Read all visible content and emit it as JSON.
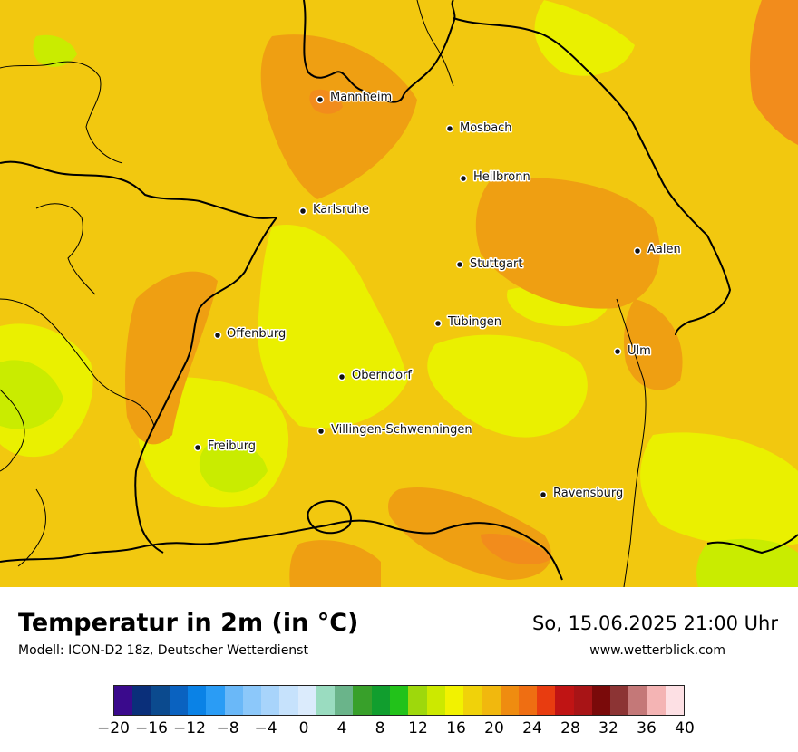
{
  "map": {
    "colors": {
      "base": "#f2c80f",
      "warm": "#ef9f12",
      "hot": "#f28c1c",
      "cool": "#eaf000",
      "cooler": "#c9ec00",
      "green": "#8cd214"
    },
    "cities": [
      {
        "name": "Mannheim",
        "id": "mannheim"
      },
      {
        "name": "Mosbach",
        "id": "mosbach"
      },
      {
        "name": "Heilbronn",
        "id": "heilbronn"
      },
      {
        "name": "Karlsruhe",
        "id": "karlsruhe"
      },
      {
        "name": "Aalen",
        "id": "aalen"
      },
      {
        "name": "Stuttgart",
        "id": "stuttgart"
      },
      {
        "name": "Tübingen",
        "id": "tuebingen"
      },
      {
        "name": "Offenburg",
        "id": "offenburg"
      },
      {
        "name": "Ulm",
        "id": "ulm"
      },
      {
        "name": "Oberndorf",
        "id": "oberndorf"
      },
      {
        "name": "Villingen-Schwenningen",
        "id": "villingen-schwenningen"
      },
      {
        "name": "Freiburg",
        "id": "freiburg"
      },
      {
        "name": "Ravensburg",
        "id": "ravensburg"
      }
    ]
  },
  "footer": {
    "title": "Temperatur in 2m (in °C)",
    "model": "Modell: ICON-D2 18z, Deutscher Wetterdienst",
    "datetime": "So, 15.06.2025 21:00 Uhr",
    "website": "www.wetterblick.com"
  },
  "legend": {
    "colors": [
      "#3a0a8c",
      "#0a2f7a",
      "#0b4a8e",
      "#0a62c0",
      "#0a82e6",
      "#2a9cf5",
      "#6ab8f8",
      "#8cc8fa",
      "#a8d4fb",
      "#c6e2fc",
      "#dbebfc",
      "#9adcc0",
      "#6ab48a",
      "#38a02a",
      "#119e2e",
      "#22c21a",
      "#9ed80c",
      "#cce900",
      "#f2f200",
      "#f0d20a",
      "#f1b80e",
      "#ef8c10",
      "#ef6e12",
      "#e83c10",
      "#c01414",
      "#a81416",
      "#7a0a0a",
      "#8c3434",
      "#c47878",
      "#f4b4b4",
      "#fde0e4"
    ],
    "labels": [
      "−20",
      "−16",
      "−12",
      "−8",
      "−4",
      "0",
      "4",
      "8",
      "12",
      "16",
      "20",
      "24",
      "28",
      "32",
      "36",
      "40"
    ],
    "min": -20,
    "max": 40
  }
}
